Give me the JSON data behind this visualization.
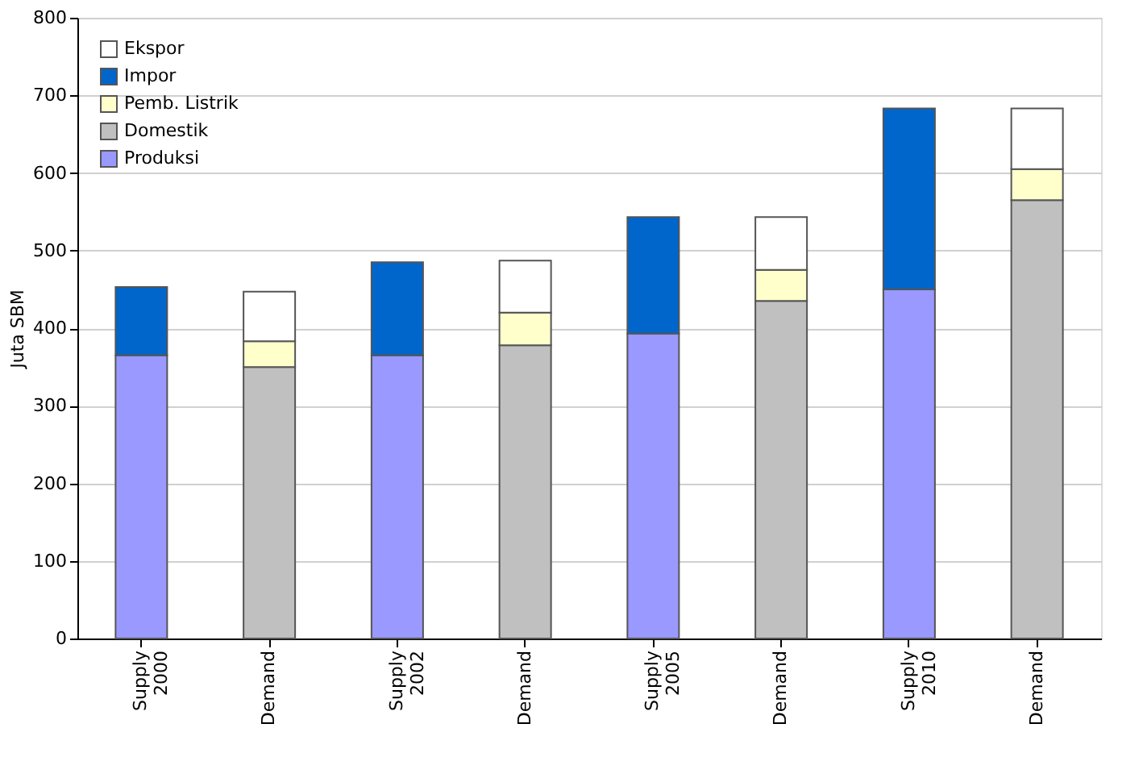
{
  "chart_data": {
    "type": "bar",
    "stacked": true,
    "ylabel": "Juta SBM",
    "categories": [
      "Supply 2000",
      "Demand",
      "Supply 2002",
      "Demand",
      "Supply 2005",
      "Demand",
      "Supply 2010",
      "Demand"
    ],
    "series": [
      {
        "name": "Produksi",
        "color": "#9999ff",
        "values": [
          365,
          null,
          365,
          null,
          393,
          null,
          450,
          null
        ]
      },
      {
        "name": "Domestik",
        "color": "#c0c0c0",
        "values": [
          null,
          350,
          null,
          378,
          null,
          435,
          null,
          565
        ]
      },
      {
        "name": "Pemb. Listrik",
        "color": "#ffffcc",
        "values": [
          null,
          33,
          null,
          42,
          null,
          40,
          null,
          40
        ]
      },
      {
        "name": "Impor",
        "color": "#0066cc",
        "values": [
          88,
          null,
          120,
          null,
          150,
          null,
          233,
          null
        ]
      },
      {
        "name": "Ekspor",
        "color": "#ffffff",
        "values": [
          null,
          64,
          null,
          67,
          null,
          68,
          null,
          78
        ]
      }
    ],
    "ylim": [
      0,
      800
    ],
    "yticks": [
      0,
      100,
      200,
      300,
      400,
      500,
      600,
      700,
      800
    ],
    "grid": "y",
    "legend": "top left"
  }
}
